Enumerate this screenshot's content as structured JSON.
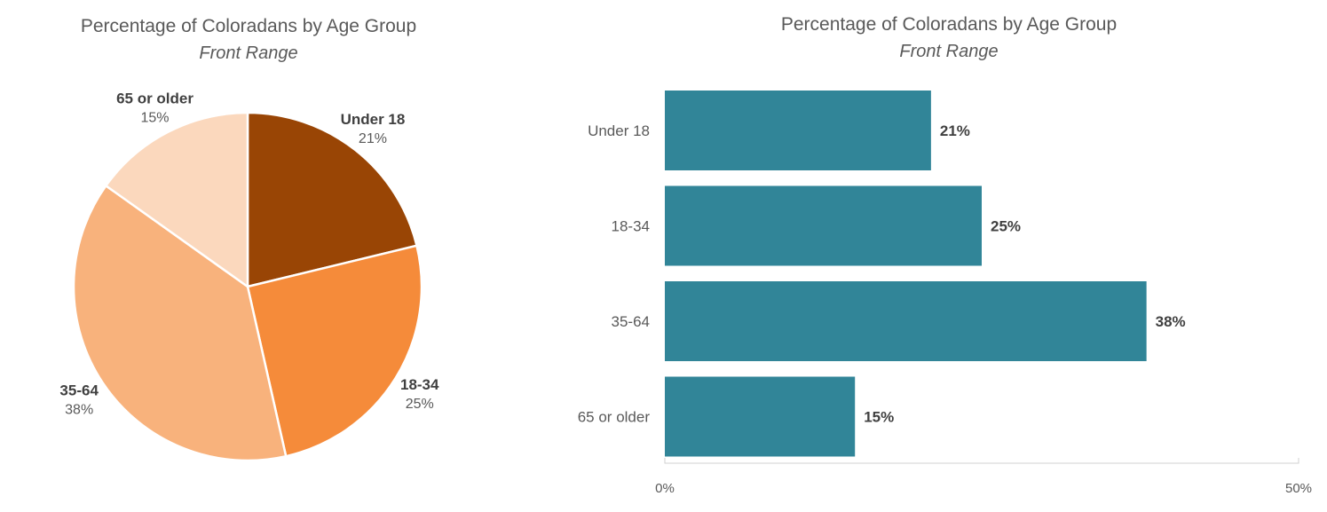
{
  "chart_data": [
    {
      "type": "pie",
      "title": "Percentage of Coloradans by Age Group",
      "subtitle": "Front Range",
      "categories": [
        "Under 18",
        "18-34",
        "35-64",
        "65 or older"
      ],
      "values": [
        21,
        25,
        38,
        15
      ],
      "value_labels": [
        "21%",
        "25%",
        "38%",
        "15%"
      ],
      "colors": [
        "#994505",
        "#f58b3a",
        "#f8b27c",
        "#fbd8bd"
      ]
    },
    {
      "type": "bar",
      "orientation": "horizontal",
      "title": "Percentage of Coloradans by Age Group",
      "subtitle": "Front Range",
      "categories": [
        "Under 18",
        "18-34",
        "35-64",
        "65 or older"
      ],
      "values": [
        21,
        25,
        38,
        15
      ],
      "value_labels": [
        "21%",
        "25%",
        "38%",
        "15%"
      ],
      "xlim": [
        0,
        50
      ],
      "x_ticks": [
        "0%",
        "50%"
      ],
      "color": "#318598",
      "grid": false
    }
  ]
}
